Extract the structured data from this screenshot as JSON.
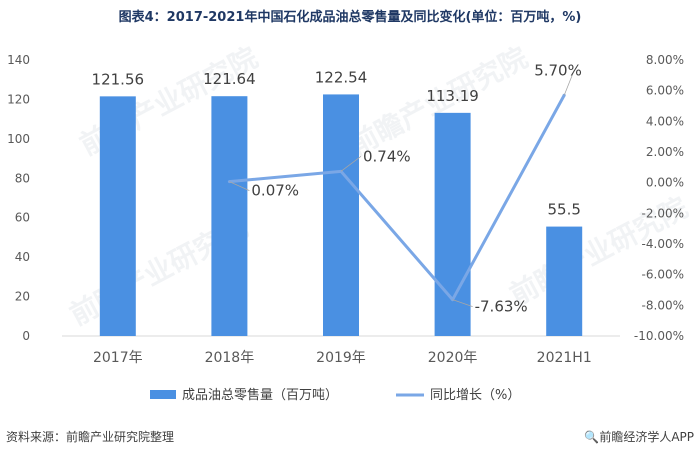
{
  "title": "图表4：2017-2021年中国石化成品油总零售量及同比变化(单位：百万吨，%)",
  "source": "资料来源：前瞻产业研究院整理",
  "brand": "前瞻经济学人APP",
  "watermark": "前瞻产业研究院",
  "colors": {
    "bar": "#4a90e2",
    "line": "#7aa7e6",
    "axis": "#d9d9d9",
    "title": "#1f3864"
  },
  "chart_data": {
    "type": "bar",
    "title": "图表4：2017-2021年中国石化成品油总零售量及同比变化(单位：百万吨，%)",
    "categories": [
      "2017年",
      "2018年",
      "2019年",
      "2020年",
      "2021H1"
    ],
    "series": [
      {
        "name": "成品油总零售量（百万吨）",
        "type": "bar",
        "axis": "left",
        "values": [
          121.56,
          121.64,
          122.54,
          113.19,
          55.5
        ],
        "labels": [
          "121.56",
          "121.64",
          "122.54",
          "113.19",
          "55.5"
        ]
      },
      {
        "name": "同比增长（%）",
        "type": "line",
        "axis": "right",
        "values": [
          null,
          0.07,
          0.74,
          -7.63,
          5.7
        ],
        "labels": [
          "",
          "0.07%",
          "0.74%",
          "-7.63%",
          "5.70%"
        ]
      }
    ],
    "y_left": {
      "min": 0,
      "max": 140,
      "ticks": [
        "0",
        "20",
        "40",
        "60",
        "80",
        "100",
        "120",
        "140"
      ]
    },
    "y_right": {
      "min": -10,
      "max": 8,
      "ticks": [
        "-10.00%",
        "-8.00%",
        "-6.00%",
        "-4.00%",
        "-2.00%",
        "0.00%",
        "2.00%",
        "4.00%",
        "6.00%",
        "8.00%"
      ]
    },
    "legend_position": "bottom",
    "grid": false
  }
}
